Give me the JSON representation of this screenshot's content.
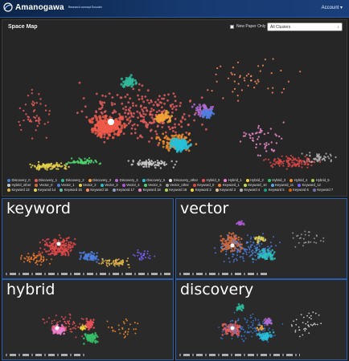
{
  "app": {
    "logo_text": "Amanogawa",
    "logo_sub": "Research concept Encoder",
    "account_label": "Account ▾"
  },
  "space_map": {
    "title": "Space Map",
    "new_paper_label": "New Paper Only",
    "cluster_select": "All Clusters"
  },
  "legend": [
    {
      "label": "Discovery_0",
      "color": "#3b7dd8"
    },
    {
      "label": "Discovery_1",
      "color": "#e35d5d"
    },
    {
      "label": "Discovery_2",
      "color": "#2fb89a"
    },
    {
      "label": "Discovery_3",
      "color": "#f2a23a"
    },
    {
      "label": "Discovery_4",
      "color": "#b06cd6"
    },
    {
      "label": "Discovery_5",
      "color": "#28c0d8"
    },
    {
      "label": "Discovery_other",
      "color": "#e0e0e0"
    },
    {
      "label": "Hybrid_0",
      "color": "#e8505b"
    },
    {
      "label": "Hybrid_1",
      "color": "#ef7fd1"
    },
    {
      "label": "Hybrid_2",
      "color": "#f6d13a"
    },
    {
      "label": "Hybrid_3",
      "color": "#36c46a"
    },
    {
      "label": "Hybrid_4",
      "color": "#f08c2e"
    },
    {
      "label": "Hybrid_5",
      "color": "#9fd04a"
    },
    {
      "label": "Hybrid_other",
      "color": "#c8c8c8"
    },
    {
      "label": "Vector_0",
      "color": "#d66b3c"
    },
    {
      "label": "Vector_1",
      "color": "#4e7fe0"
    },
    {
      "label": "Vector_2",
      "color": "#e6d24a"
    },
    {
      "label": "Vector_3",
      "color": "#2ac1c1"
    },
    {
      "label": "Vector_4",
      "color": "#b05ad8"
    },
    {
      "label": "Vector_5",
      "color": "#4fd46e"
    },
    {
      "label": "Vector_other",
      "color": "#9a9a9a"
    },
    {
      "label": "Keyword_0",
      "color": "#e04848"
    },
    {
      "label": "Keyword_1",
      "color": "#f37c2a"
    },
    {
      "label": "Keyword_10",
      "color": "#c2d94a"
    },
    {
      "label": "Keyword_11",
      "color": "#5aa3e6"
    },
    {
      "label": "Keyword_12",
      "color": "#7b61ff"
    },
    {
      "label": "Keyword 13",
      "color": "#e6b84a"
    },
    {
      "label": "Keyword 14",
      "color": "#d8d855"
    },
    {
      "label": "Keyword 15",
      "color": "#66c2a5"
    },
    {
      "label": "Keyword 16",
      "color": "#fc8d62"
    },
    {
      "label": "Keyword 17",
      "color": "#8da0cb"
    },
    {
      "label": "Keyword 18",
      "color": "#e78ac3"
    },
    {
      "label": "Keyword 19",
      "color": "#a6d854"
    },
    {
      "label": "Keyword 2",
      "color": "#ffd92f"
    },
    {
      "label": "Keyword 3",
      "color": "#e5c494"
    },
    {
      "label": "Keyword 4",
      "color": "#b3b3b3"
    },
    {
      "label": "Keyword 5",
      "color": "#1b9e77"
    },
    {
      "label": "Keyword 6",
      "color": "#d95f02"
    },
    {
      "label": "Keyword 7",
      "color": "#7570b3"
    }
  ],
  "panels": {
    "keyword": {
      "title": "keyword"
    },
    "vector": {
      "title": "vector"
    },
    "hybrid": {
      "title": "hybrid"
    },
    "discovery": {
      "title": "discovery"
    }
  }
}
